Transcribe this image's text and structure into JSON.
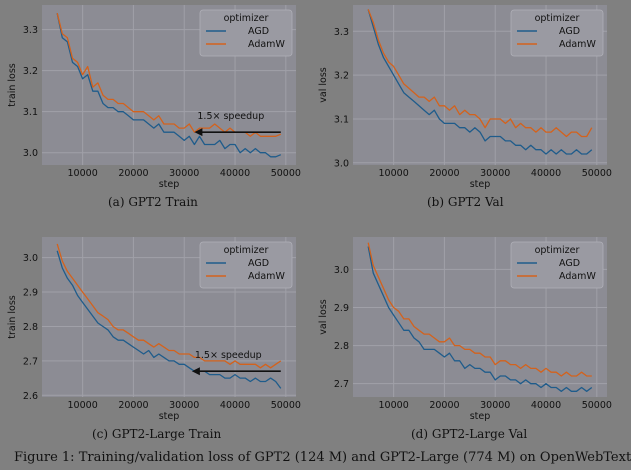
{
  "figure_caption": "Figure 1: Training/validation loss of GPT2 (124 M) and GPT2-Large (774 M) on OpenWebText",
  "colors": {
    "AGD": "#1f5c8b",
    "AdamW": "#d4621c"
  },
  "chart_data": [
    {
      "type": "line",
      "caption": "(a) GPT2 Train",
      "xlabel": "step",
      "ylabel": "train loss",
      "xlim": [
        2000,
        52000
      ],
      "ylim": [
        2.97,
        3.36
      ],
      "xticks": [
        10000,
        20000,
        30000,
        40000,
        50000
      ],
      "xtick_labels": [
        "10000",
        "20000",
        "30000",
        "40000",
        "50000"
      ],
      "yticks": [
        3.0,
        3.1,
        3.2,
        3.3
      ],
      "ytick_labels": [
        "3.0",
        "3.1",
        "3.2",
        "3.3"
      ],
      "legend": {
        "title": "optimizer",
        "placement": "top-right"
      },
      "annotation": {
        "text": "1.5× speedup",
        "from": [
          49000,
          3.05
        ],
        "to": [
          32000,
          3.05
        ]
      },
      "x": [
        5000,
        6000,
        7000,
        8000,
        9000,
        10000,
        11000,
        12000,
        13000,
        14000,
        15000,
        16000,
        17000,
        18000,
        19000,
        20000,
        21000,
        22000,
        23000,
        24000,
        25000,
        26000,
        27000,
        28000,
        29000,
        30000,
        31000,
        32000,
        33000,
        34000,
        35000,
        36000,
        37000,
        38000,
        39000,
        40000,
        41000,
        42000,
        43000,
        44000,
        45000,
        46000,
        47000,
        48000,
        49000
      ],
      "series": [
        {
          "name": "AGD",
          "values": [
            3.34,
            3.28,
            3.27,
            3.22,
            3.21,
            3.18,
            3.19,
            3.15,
            3.15,
            3.12,
            3.11,
            3.11,
            3.1,
            3.1,
            3.09,
            3.08,
            3.08,
            3.08,
            3.07,
            3.06,
            3.07,
            3.05,
            3.05,
            3.05,
            3.04,
            3.03,
            3.04,
            3.02,
            3.04,
            3.02,
            3.02,
            3.02,
            3.03,
            3.01,
            3.02,
            3.02,
            3.0,
            3.01,
            3.0,
            3.01,
            3.0,
            3.0,
            2.99,
            2.99,
            2.995
          ]
        },
        {
          "name": "AdamW",
          "values": [
            3.34,
            3.29,
            3.28,
            3.23,
            3.22,
            3.19,
            3.21,
            3.16,
            3.17,
            3.14,
            3.13,
            3.13,
            3.12,
            3.12,
            3.11,
            3.1,
            3.1,
            3.1,
            3.09,
            3.08,
            3.09,
            3.07,
            3.07,
            3.07,
            3.06,
            3.06,
            3.07,
            3.05,
            3.06,
            3.06,
            3.06,
            3.07,
            3.06,
            3.05,
            3.06,
            3.05,
            3.05,
            3.05,
            3.04,
            3.05,
            3.04,
            3.04,
            3.04,
            3.04,
            3.045
          ]
        }
      ]
    },
    {
      "type": "line",
      "caption": "(b) GPT2 Val",
      "xlabel": "step",
      "ylabel": "val loss",
      "xlim": [
        2000,
        52000
      ],
      "ylim": [
        2.995,
        3.36
      ],
      "xticks": [
        10000,
        20000,
        30000,
        40000,
        50000
      ],
      "xtick_labels": [
        "10000",
        "20000",
        "30000",
        "40000",
        "50000"
      ],
      "yticks": [
        3.0,
        3.1,
        3.2,
        3.3
      ],
      "ytick_labels": [
        "3.0",
        "3.1",
        "3.2",
        "3.3"
      ],
      "legend": {
        "title": "optimizer",
        "placement": "top-right"
      },
      "x": [
        5000,
        6000,
        7000,
        8000,
        9000,
        10000,
        11000,
        12000,
        13000,
        14000,
        15000,
        16000,
        17000,
        18000,
        19000,
        20000,
        21000,
        22000,
        23000,
        24000,
        25000,
        26000,
        27000,
        28000,
        29000,
        30000,
        31000,
        32000,
        33000,
        34000,
        35000,
        36000,
        37000,
        38000,
        39000,
        40000,
        41000,
        42000,
        43000,
        44000,
        45000,
        46000,
        47000,
        48000,
        49000
      ],
      "series": [
        {
          "name": "AGD",
          "values": [
            3.35,
            3.31,
            3.27,
            3.24,
            3.22,
            3.2,
            3.18,
            3.16,
            3.15,
            3.14,
            3.13,
            3.12,
            3.11,
            3.12,
            3.1,
            3.09,
            3.09,
            3.09,
            3.08,
            3.08,
            3.07,
            3.08,
            3.07,
            3.05,
            3.06,
            3.06,
            3.06,
            3.05,
            3.05,
            3.04,
            3.04,
            3.03,
            3.04,
            3.03,
            3.03,
            3.02,
            3.03,
            3.02,
            3.03,
            3.02,
            3.02,
            3.03,
            3.02,
            3.02,
            3.03
          ]
        },
        {
          "name": "AdamW",
          "values": [
            3.35,
            3.32,
            3.28,
            3.25,
            3.23,
            3.22,
            3.2,
            3.18,
            3.17,
            3.16,
            3.15,
            3.15,
            3.14,
            3.15,
            3.13,
            3.13,
            3.12,
            3.13,
            3.11,
            3.12,
            3.11,
            3.11,
            3.1,
            3.08,
            3.1,
            3.1,
            3.1,
            3.09,
            3.1,
            3.08,
            3.09,
            3.08,
            3.08,
            3.07,
            3.08,
            3.07,
            3.07,
            3.08,
            3.07,
            3.06,
            3.07,
            3.07,
            3.06,
            3.06,
            3.08
          ]
        }
      ]
    },
    {
      "type": "line",
      "caption": "(c) GPT2-Large Train",
      "xlabel": "step",
      "ylabel": "train loss",
      "xlim": [
        2000,
        52000
      ],
      "ylim": [
        2.595,
        3.06
      ],
      "xticks": [
        10000,
        20000,
        30000,
        40000,
        50000
      ],
      "xtick_labels": [
        "10000",
        "20000",
        "30000",
        "40000",
        "50000"
      ],
      "yticks": [
        2.6,
        2.7,
        2.8,
        2.9,
        3.0
      ],
      "ytick_labels": [
        "2.6",
        "2.7",
        "2.8",
        "2.9",
        "3.0"
      ],
      "legend": {
        "title": "optimizer",
        "placement": "top-right"
      },
      "annotation": {
        "text": "1.5× speedup",
        "from": [
          49000,
          2.67
        ],
        "to": [
          31500,
          2.67
        ]
      },
      "x": [
        5000,
        6000,
        7000,
        8000,
        9000,
        10000,
        11000,
        12000,
        13000,
        14000,
        15000,
        16000,
        17000,
        18000,
        19000,
        20000,
        21000,
        22000,
        23000,
        24000,
        25000,
        26000,
        27000,
        28000,
        29000,
        30000,
        31000,
        32000,
        33000,
        34000,
        35000,
        36000,
        37000,
        38000,
        39000,
        40000,
        41000,
        42000,
        43000,
        44000,
        45000,
        46000,
        47000,
        48000,
        49000
      ],
      "series": [
        {
          "name": "AGD",
          "values": [
            3.02,
            2.97,
            2.94,
            2.92,
            2.89,
            2.87,
            2.85,
            2.83,
            2.81,
            2.8,
            2.79,
            2.77,
            2.76,
            2.76,
            2.75,
            2.74,
            2.73,
            2.72,
            2.73,
            2.71,
            2.72,
            2.71,
            2.7,
            2.7,
            2.69,
            2.69,
            2.68,
            2.67,
            2.67,
            2.67,
            2.66,
            2.66,
            2.66,
            2.65,
            2.65,
            2.66,
            2.65,
            2.65,
            2.64,
            2.65,
            2.64,
            2.64,
            2.65,
            2.64,
            2.62
          ]
        },
        {
          "name": "AdamW",
          "values": [
            3.04,
            2.99,
            2.96,
            2.94,
            2.92,
            2.9,
            2.88,
            2.86,
            2.84,
            2.83,
            2.82,
            2.8,
            2.79,
            2.79,
            2.78,
            2.77,
            2.76,
            2.76,
            2.75,
            2.74,
            2.75,
            2.74,
            2.73,
            2.73,
            2.72,
            2.72,
            2.72,
            2.71,
            2.71,
            2.7,
            2.7,
            2.7,
            2.7,
            2.7,
            2.69,
            2.7,
            2.69,
            2.69,
            2.69,
            2.69,
            2.68,
            2.69,
            2.68,
            2.69,
            2.7
          ]
        }
      ]
    },
    {
      "type": "line",
      "caption": "(d) GPT2-Large Val",
      "xlabel": "step",
      "ylabel": "val loss",
      "xlim": [
        2000,
        52000
      ],
      "ylim": [
        2.665,
        3.085
      ],
      "xticks": [
        10000,
        20000,
        30000,
        40000,
        50000
      ],
      "xtick_labels": [
        "10000",
        "20000",
        "30000",
        "40000",
        "50000"
      ],
      "yticks": [
        2.7,
        2.8,
        2.9,
        3.0
      ],
      "ytick_labels": [
        "2.7",
        "2.8",
        "2.9",
        "3.0"
      ],
      "legend": {
        "title": "optimizer",
        "placement": "top-right"
      },
      "x": [
        5000,
        6000,
        7000,
        8000,
        9000,
        10000,
        11000,
        12000,
        13000,
        14000,
        15000,
        16000,
        17000,
        18000,
        19000,
        20000,
        21000,
        22000,
        23000,
        24000,
        25000,
        26000,
        27000,
        28000,
        29000,
        30000,
        31000,
        32000,
        33000,
        34000,
        35000,
        36000,
        37000,
        38000,
        39000,
        40000,
        41000,
        42000,
        43000,
        44000,
        45000,
        46000,
        47000,
        48000,
        49000
      ],
      "series": [
        {
          "name": "AGD",
          "values": [
            3.06,
            2.99,
            2.96,
            2.93,
            2.9,
            2.88,
            2.86,
            2.84,
            2.84,
            2.82,
            2.81,
            2.79,
            2.79,
            2.79,
            2.78,
            2.77,
            2.78,
            2.76,
            2.76,
            2.74,
            2.75,
            2.74,
            2.74,
            2.73,
            2.73,
            2.71,
            2.72,
            2.72,
            2.71,
            2.71,
            2.7,
            2.71,
            2.7,
            2.7,
            2.69,
            2.7,
            2.69,
            2.69,
            2.68,
            2.69,
            2.68,
            2.68,
            2.69,
            2.68,
            2.69
          ]
        },
        {
          "name": "AdamW",
          "values": [
            3.07,
            3.01,
            2.98,
            2.95,
            2.92,
            2.9,
            2.89,
            2.87,
            2.87,
            2.85,
            2.84,
            2.83,
            2.83,
            2.82,
            2.81,
            2.81,
            2.82,
            2.8,
            2.8,
            2.79,
            2.79,
            2.78,
            2.78,
            2.77,
            2.77,
            2.75,
            2.76,
            2.76,
            2.75,
            2.75,
            2.74,
            2.75,
            2.74,
            2.74,
            2.73,
            2.74,
            2.73,
            2.73,
            2.72,
            2.73,
            2.72,
            2.72,
            2.73,
            2.72,
            2.72
          ]
        }
      ]
    }
  ]
}
